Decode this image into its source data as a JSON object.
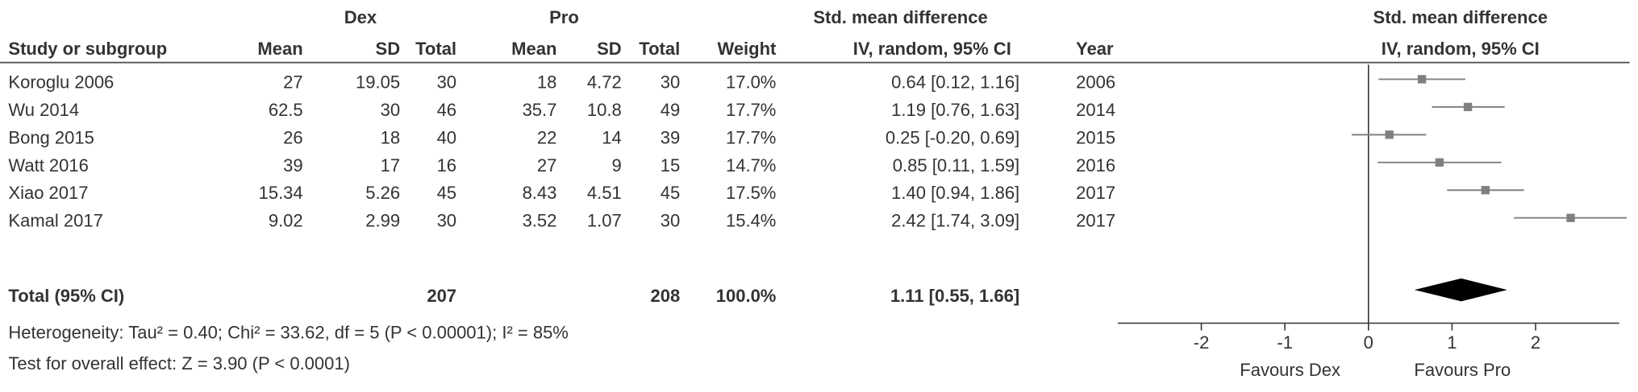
{
  "chart_data": {
    "type": "forest",
    "group_labels": [
      "Dex",
      "Pro"
    ],
    "ci_header": "Std. mean difference",
    "columns": [
      "Study or subgroup",
      "Mean",
      "SD",
      "Total",
      "Mean",
      "SD",
      "Total",
      "Weight",
      "IV, random, 95% CI",
      "Year"
    ],
    "plot_header": "Std. mean difference",
    "plot_subheader": "IV, random, 95% CI",
    "studies": [
      {
        "name": "Koroglu 2006",
        "dex_mean": 27,
        "dex_sd": 19.05,
        "dex_total": 30,
        "pro_mean": 18,
        "pro_sd": 4.72,
        "pro_total": 30,
        "weight": "17.0%",
        "ci": "0.64 [0.12, 1.16]",
        "year": 2006,
        "smd": 0.64,
        "ci_low": 0.12,
        "ci_high": 1.16
      },
      {
        "name": "Wu 2014",
        "dex_mean": 62.5,
        "dex_sd": 30,
        "dex_total": 46,
        "pro_mean": 35.7,
        "pro_sd": 10.8,
        "pro_total": 49,
        "weight": "17.7%",
        "ci": "1.19 [0.76, 1.63]",
        "year": 2014,
        "smd": 1.19,
        "ci_low": 0.76,
        "ci_high": 1.63
      },
      {
        "name": "Bong 2015",
        "dex_mean": 26,
        "dex_sd": 18,
        "dex_total": 40,
        "pro_mean": 22,
        "pro_sd": 14,
        "pro_total": 39,
        "weight": "17.7%",
        "ci": "0.25 [-0.20, 0.69]",
        "year": 2015,
        "smd": 0.25,
        "ci_low": -0.2,
        "ci_high": 0.69
      },
      {
        "name": "Watt 2016",
        "dex_mean": 39,
        "dex_sd": 17,
        "dex_total": 16,
        "pro_mean": 27,
        "pro_sd": 9,
        "pro_total": 15,
        "weight": "14.7%",
        "ci": "0.85 [0.11, 1.59]",
        "year": 2016,
        "smd": 0.85,
        "ci_low": 0.11,
        "ci_high": 1.59
      },
      {
        "name": "Xiao 2017",
        "dex_mean": 15.34,
        "dex_sd": 5.26,
        "dex_total": 45,
        "pro_mean": 8.43,
        "pro_sd": 4.51,
        "pro_total": 45,
        "weight": "17.5%",
        "ci": "1.40 [0.94, 1.86]",
        "year": 2017,
        "smd": 1.4,
        "ci_low": 0.94,
        "ci_high": 1.86
      },
      {
        "name": "Kamal 2017",
        "dex_mean": 9.02,
        "dex_sd": 2.99,
        "dex_total": 30,
        "pro_mean": 3.52,
        "pro_sd": 1.07,
        "pro_total": 30,
        "weight": "15.4%",
        "ci": "2.42 [1.74, 3.09]",
        "year": 2017,
        "smd": 2.42,
        "ci_low": 1.74,
        "ci_high": 3.09
      }
    ],
    "total": {
      "name": "Total (95% CI)",
      "dex_total": 207,
      "pro_total": 208,
      "weight": "100.0%",
      "ci": "1.11 [0.55, 1.66]",
      "smd": 1.11,
      "ci_low": 0.55,
      "ci_high": 1.66
    },
    "heterogeneity": "Heterogeneity: Tau² = 0.40; Chi² = 33.62, df = 5 (P < 0.00001); I² = 85%",
    "overall_effect": "Test for overall effect: Z = 3.90 (P < 0.0001)",
    "xlim": [
      -3,
      3
    ],
    "xticks": [
      -2,
      -1,
      0,
      1,
      2
    ],
    "favours_left": "Favours Dex",
    "favours_right": "Favours Pro",
    "color": "#808080"
  }
}
